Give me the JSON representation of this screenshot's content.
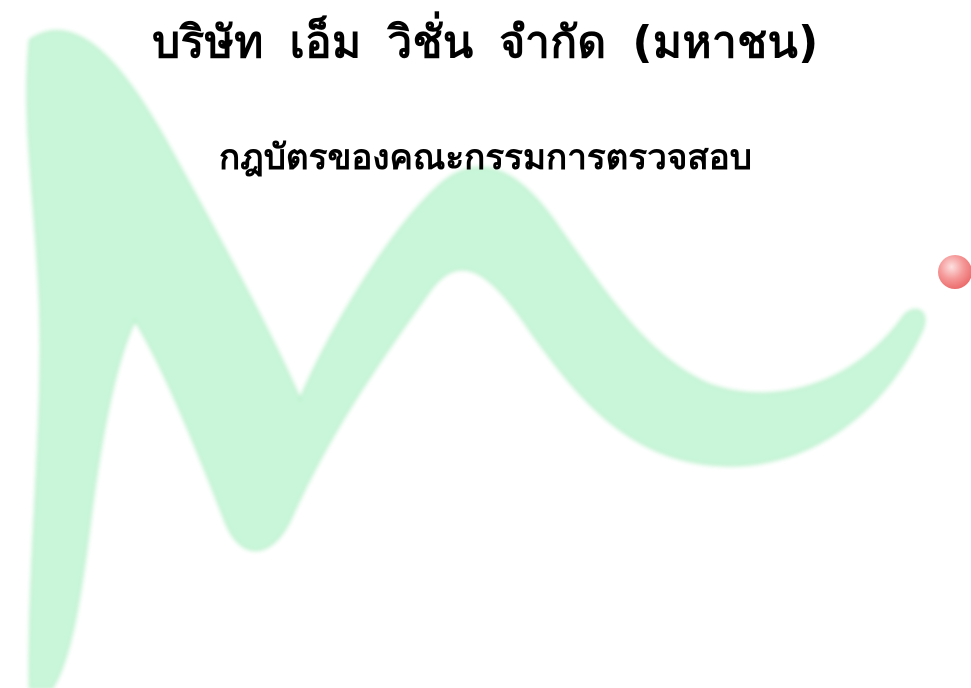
{
  "document": {
    "title": "บริษัท เอ็ม วิชั่น จำกัด (มหาชน)",
    "subtitle": "กฎบัตรของคณะกรรมการตรวจสอบ"
  },
  "colors": {
    "watermark_green": "#c8f5d8",
    "watermark_green_edge": "#b4efc9",
    "dot_red": "#f58080",
    "text": "#000000"
  }
}
